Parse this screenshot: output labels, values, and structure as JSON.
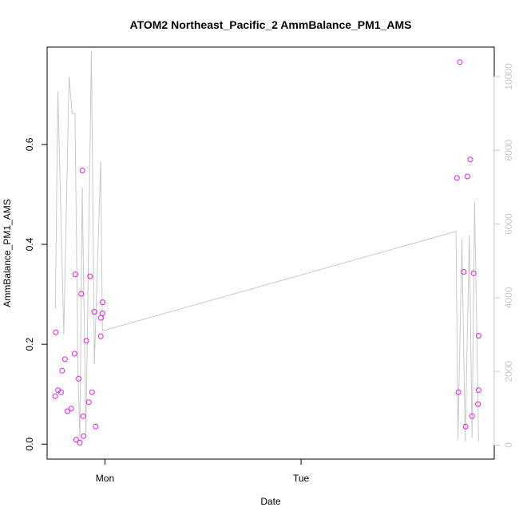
{
  "chart_data": {
    "type": "scatter",
    "title": "ATOM2 Northeast_Pacific_2 AmmBalance_PM1_AMS",
    "xlabel": "Date",
    "ylabel": "AmmBalance_PM1_AMS",
    "x_axis": {
      "unit": "days since Monday 00:00",
      "range": [
        -0.295,
        1.985
      ],
      "ticks": [
        {
          "value": 0,
          "label": "Mon"
        },
        {
          "value": 1,
          "label": "Tue"
        }
      ]
    },
    "y_left": {
      "range": [
        -0.03,
        0.795
      ],
      "ticks": [
        {
          "value": 0.0,
          "label": "0.0"
        },
        {
          "value": 0.2,
          "label": "0.2"
        },
        {
          "value": 0.4,
          "label": "0.4"
        },
        {
          "value": 0.6,
          "label": "0.6"
        }
      ]
    },
    "y_right": {
      "color": "#c8c8c8",
      "range": [
        -380,
        10800
      ],
      "ticks": [
        {
          "value": 0,
          "label": "0"
        },
        {
          "value": 2000,
          "label": "2000"
        },
        {
          "value": 4000,
          "label": "4000"
        },
        {
          "value": 6000,
          "label": "6000"
        },
        {
          "value": 8000,
          "label": "8000"
        },
        {
          "value": 10000,
          "label": "10000"
        }
      ]
    },
    "series": [
      {
        "name": "AmmBalance_PM1_AMS",
        "kind": "points",
        "axis": "left",
        "color": "#e619e6",
        "points": [
          [
            -0.254,
            0.096
          ],
          [
            -0.251,
            0.224
          ],
          [
            -0.239,
            0.108
          ],
          [
            -0.224,
            0.104
          ],
          [
            -0.218,
            0.147
          ],
          [
            -0.204,
            0.17
          ],
          [
            -0.191,
            0.066
          ],
          [
            -0.172,
            0.071
          ],
          [
            -0.155,
            0.181
          ],
          [
            -0.151,
            0.34
          ],
          [
            -0.147,
            0.009
          ],
          [
            -0.134,
            0.131
          ],
          [
            -0.128,
            0.003
          ],
          [
            -0.121,
            0.301
          ],
          [
            -0.115,
            0.548
          ],
          [
            -0.111,
            0.056
          ],
          [
            -0.109,
            0.016
          ],
          [
            -0.095,
            0.207
          ],
          [
            -0.082,
            0.084
          ],
          [
            -0.076,
            0.336
          ],
          [
            -0.066,
            0.104
          ],
          [
            -0.054,
            0.265
          ],
          [
            -0.047,
            0.035
          ],
          [
            -0.02,
            0.253
          ],
          [
            -0.021,
            0.216
          ],
          [
            -0.012,
            0.284
          ],
          [
            -0.013,
            0.262
          ],
          [
            1.795,
            0.533
          ],
          [
            1.802,
            0.104
          ],
          [
            1.81,
            0.765
          ],
          [
            1.83,
            0.345
          ],
          [
            1.839,
            0.035
          ],
          [
            1.848,
            0.536
          ],
          [
            1.863,
            0.57
          ],
          [
            1.872,
            0.056
          ],
          [
            1.88,
            0.342
          ],
          [
            1.902,
            0.08
          ],
          [
            1.905,
            0.217
          ],
          [
            1.905,
            0.108
          ]
        ]
      },
      {
        "name": "",
        "kind": "line",
        "axis": "right",
        "color": "#c8c8c8",
        "points": [
          [
            -0.253,
            3700
          ],
          [
            -0.24,
            9600
          ],
          [
            -0.21,
            3000
          ],
          [
            -0.183,
            10000
          ],
          [
            -0.167,
            9000
          ],
          [
            -0.153,
            9000
          ],
          [
            -0.137,
            1800
          ],
          [
            -0.128,
            200
          ],
          [
            -0.116,
            7000
          ],
          [
            -0.097,
            300
          ],
          [
            -0.069,
            10700
          ],
          [
            -0.054,
            2200
          ],
          [
            -0.022,
            7700
          ],
          [
            -0.013,
            3100
          ],
          [
            1.79,
            5800
          ],
          [
            1.8,
            150
          ],
          [
            1.82,
            5600
          ],
          [
            1.837,
            100
          ],
          [
            1.858,
            5700
          ],
          [
            1.872,
            200
          ],
          [
            1.885,
            6600
          ],
          [
            1.905,
            100
          ]
        ]
      }
    ]
  }
}
